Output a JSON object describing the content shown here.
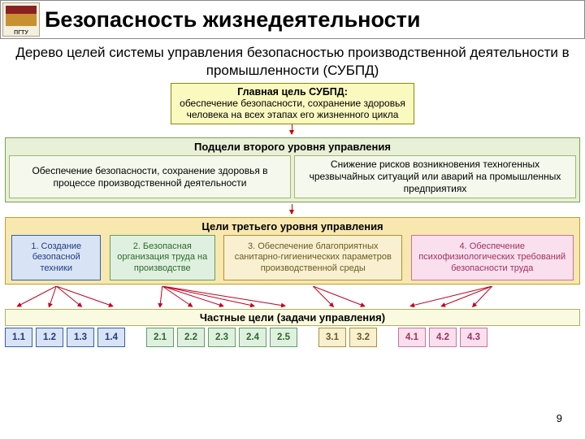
{
  "logo_caption": "ПГТУ",
  "title": "Безопасность жизнедеятельности",
  "subtitle": "Дерево целей системы управления безопасностью производственной деятельности в промышленности (СУБПД)",
  "colors": {
    "arrow": "#c00020",
    "main_border": "#8a8a00",
    "main_fill": "#fafac0",
    "l2_border": "#7aa050",
    "l2_fill": "#e8f0d8",
    "l2_box_border": "#a0b870",
    "l2_box_fill": "#f5f8ec",
    "l3_border": "#c0a030",
    "l3_fill": "#f8e8b0",
    "l3_group1_border": "#3060b0",
    "l3_group1_fill": "#d8e4f5",
    "l3_group1_text": "#203a80",
    "l3_group2_border": "#60a060",
    "l3_group2_fill": "#e0f0e0",
    "l3_group2_text": "#2a6a2a",
    "l3_group3_border": "#b09030",
    "l3_group3_fill": "#f8f0d0",
    "l3_group3_text": "#6a5a20",
    "l3_group4_border": "#d070a0",
    "l3_group4_fill": "#fae0ee",
    "l3_group4_text": "#a03060",
    "leaf_border": "#b0b060",
    "leaf_fill": "#fafae0"
  },
  "main_goal": {
    "bold": "Главная цель СУБПД:",
    "text": "обеспечение безопасности, сохранение здоровья человека на всех этапах его жизненного цикла"
  },
  "level2": {
    "title": "Подцели второго уровня управления",
    "boxes": [
      "Обеспечение безопасности, сохранение здоровья в процессе производственной деятельности",
      "Снижение рисков возникновения техногенных чрезвычайных ситуаций или аварий на промышленных предприятиях"
    ]
  },
  "level3": {
    "title": "Цели третьего уровня управления",
    "boxes": [
      {
        "label": "1. Создание безопасной техники",
        "group": 1
      },
      {
        "label": "2. Безопасная организация труда на производстве",
        "group": 2
      },
      {
        "label": "3. Обеспечение благоприятных санитарно-гигиенических параметров производственной среды",
        "group": 3
      },
      {
        "label": "4. Обеспечение психофизиологических требований безопасности труда",
        "group": 4
      }
    ]
  },
  "level4": {
    "title": "Частные цели (задачи управления)",
    "groups": [
      {
        "group": 1,
        "items": [
          "1.1",
          "1.2",
          "1.3",
          "1.4"
        ]
      },
      {
        "group": 2,
        "items": [
          "2.1",
          "2.2",
          "2.3",
          "2.4",
          "2.5"
        ]
      },
      {
        "group": 3,
        "items": [
          "3.1",
          "3.2"
        ]
      },
      {
        "group": 4,
        "items": [
          "4.1",
          "4.2",
          "4.3"
        ]
      }
    ]
  },
  "fan_origins_x": [
    82,
    242,
    428,
    612
  ],
  "leaf_centers_x": [
    25,
    63,
    101,
    139,
    196,
    234,
    272,
    310,
    348,
    405,
    443,
    500,
    538,
    576
  ],
  "page_number": "9"
}
